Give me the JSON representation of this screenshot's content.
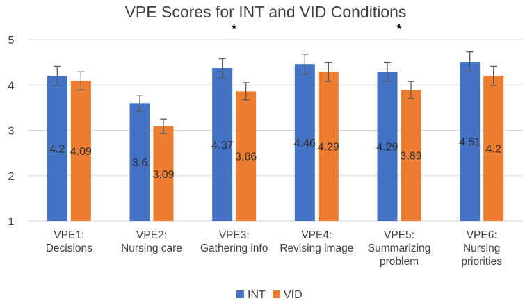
{
  "chart_data": {
    "type": "bar",
    "title": "VPE Scores for INT and VID Conditions",
    "categories": [
      [
        "VPE1:",
        "Decisions"
      ],
      [
        "VPE2:",
        "Nursing care"
      ],
      [
        "VPE3:",
        "Gathering info"
      ],
      [
        "VPE4:",
        "Revising image"
      ],
      [
        "VPE5:",
        "Summarizing",
        "problem"
      ],
      [
        "VPE6:",
        "Nursing",
        "priorities"
      ]
    ],
    "series": [
      {
        "name": "INT",
        "color": "#4472C4",
        "values": [
          4.2,
          3.6,
          4.37,
          4.46,
          4.29,
          4.51
        ],
        "labels": [
          "4.2",
          "3.6",
          "4.37",
          "4.46",
          "4.29",
          "4.51"
        ],
        "errors": [
          0.21,
          0.18,
          0.21,
          0.22,
          0.21,
          0.22
        ]
      },
      {
        "name": "VID",
        "color": "#ED7D31",
        "values": [
          4.09,
          3.09,
          3.86,
          4.29,
          3.89,
          4.2
        ],
        "labels": [
          "4.09",
          "3.09",
          "3.86",
          "4.29",
          "3.89",
          "4.2"
        ],
        "errors": [
          0.2,
          0.16,
          0.19,
          0.21,
          0.19,
          0.21
        ]
      }
    ],
    "yticks": [
      "1",
      "2",
      "3",
      "4",
      "5"
    ],
    "ylim": [
      1,
      5
    ],
    "significance": [
      "",
      "",
      "*",
      "",
      "*",
      ""
    ],
    "legend_position": "bottom"
  }
}
